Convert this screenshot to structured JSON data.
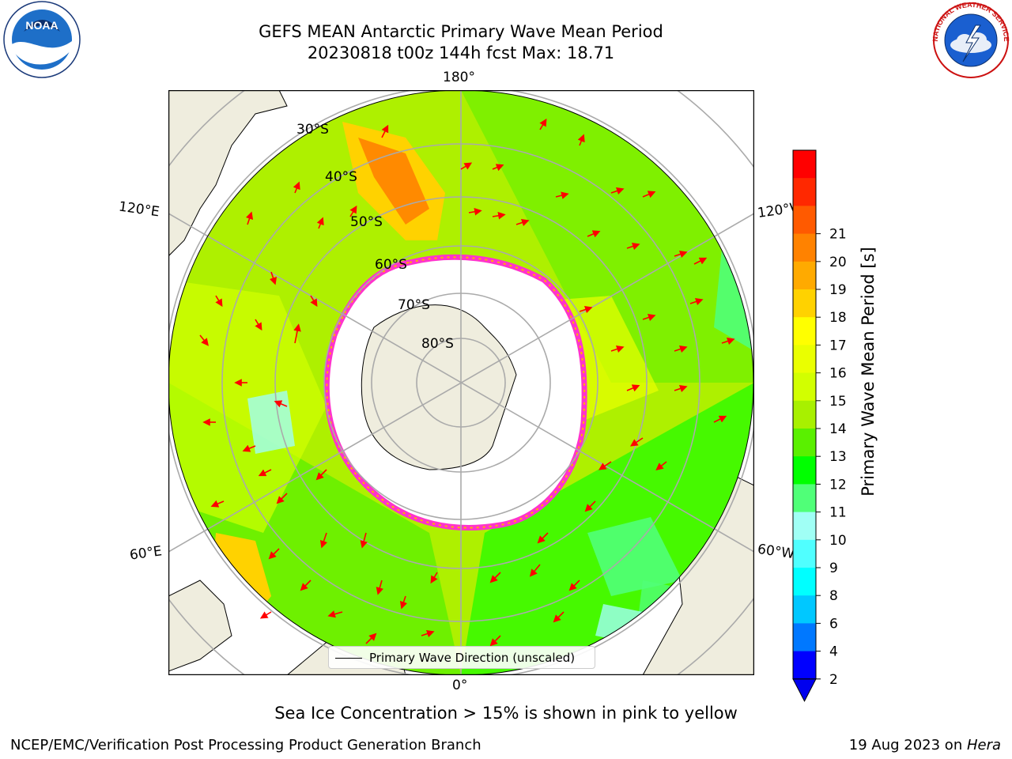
{
  "header": {
    "title_line1": "GEFS MEAN Antarctic Primary Wave Mean Period",
    "title_line2": "20230818 t00z 144h fcst   Max: 18.71"
  },
  "logos": {
    "left": "NOAA",
    "left_ring_text": "NATIONAL OCEANIC AND ATMOSPHERIC ADMINISTRATION · U.S. DEPARTMENT OF COMMERCE",
    "right_ring_text": "NATIONAL WEATHER SERVICE"
  },
  "map": {
    "longitude_labels": {
      "top": "180°",
      "bottom": "0°",
      "upper_left": "120°E",
      "upper_right": "120°W",
      "lower_left": "60°E",
      "lower_right": "60°W"
    },
    "latitude_labels": [
      "30°S",
      "40°S",
      "50°S",
      "60°S",
      "70°S",
      "80°S"
    ],
    "legend_label": "Primary Wave Direction (unscaled)",
    "colors": {
      "land": "#efedde",
      "ice_edge": "#ff33cc",
      "arrow": "#ff0000",
      "graticule": "#aaaaaa"
    }
  },
  "colorbar": {
    "label": "Primary Wave Mean Period [s]",
    "ticks": [
      "2",
      "4",
      "6",
      "8",
      "9",
      "10",
      "11",
      "12",
      "13",
      "14",
      "15",
      "16",
      "17",
      "18",
      "19",
      "20",
      "21"
    ],
    "colors": [
      "#0000ff",
      "#0078ff",
      "#00c8ff",
      "#00ffff",
      "#50ffff",
      "#a0fff5",
      "#50ff78",
      "#00ff00",
      "#5af000",
      "#a8f000",
      "#d2ff00",
      "#eaff00",
      "#ffff00",
      "#ffd200",
      "#ffaa00",
      "#ff8200",
      "#ff5a00",
      "#ff2800",
      "#ff0000"
    ],
    "extend_color": "#0000ee"
  },
  "caption": "Sea Ice Concentration > 15% is shown in pink to yellow",
  "footer": {
    "left": "NCEP/EMC/Verification Post Processing Product Generation Branch",
    "right_date": "19 Aug 2023 on ",
    "right_host": "Hera"
  }
}
